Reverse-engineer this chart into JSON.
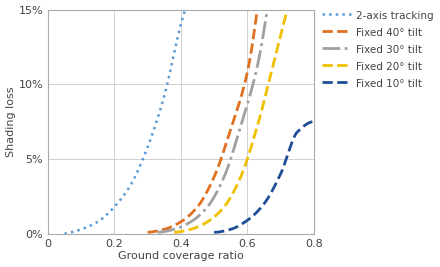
{
  "xlabel": "Ground coverage ratio",
  "ylabel": "Shading loss",
  "xlim": [
    0,
    0.8
  ],
  "ylim": [
    0,
    0.15
  ],
  "xticks": [
    0,
    0.2,
    0.4,
    0.6,
    0.8
  ],
  "yticks": [
    0.0,
    0.05,
    0.1,
    0.15
  ],
  "ytick_labels": [
    "0%",
    "5%",
    "10%",
    "15%"
  ],
  "xtick_labels": [
    "0",
    "0.2",
    "0.4",
    "0.6",
    "0.8"
  ],
  "background_color": "#ffffff",
  "grid_color": "#d0d0d0",
  "curves": [
    {
      "label": "2-axis tracking",
      "color": "#5b9bd5",
      "linestyle": "dotted",
      "linewidth": 1.8,
      "x_points": [
        0.05,
        0.1,
        0.15,
        0.2,
        0.25,
        0.3,
        0.35,
        0.4,
        0.42
      ],
      "y_points": [
        0.0,
        0.003,
        0.008,
        0.018,
        0.033,
        0.058,
        0.092,
        0.14,
        0.155
      ]
    },
    {
      "label": "Fixed 40° tilt",
      "color": "#e07020",
      "linestyle": "dashed",
      "linewidth": 2.0,
      "x_points": [
        0.3,
        0.35,
        0.4,
        0.45,
        0.5,
        0.55,
        0.6,
        0.63
      ],
      "y_points": [
        0.001,
        0.003,
        0.008,
        0.018,
        0.038,
        0.07,
        0.108,
        0.15
      ]
    },
    {
      "label": "Fixed 30° tilt",
      "color": "#a0a0a0",
      "linestyle": "dashdot",
      "linewidth": 2.0,
      "x_points": [
        0.33,
        0.38,
        0.43,
        0.48,
        0.53,
        0.58,
        0.63,
        0.66
      ],
      "y_points": [
        0.001,
        0.003,
        0.008,
        0.018,
        0.038,
        0.072,
        0.112,
        0.15
      ]
    },
    {
      "label": "Fixed 20° tilt",
      "color": "#f0c000",
      "linestyle": "dashed",
      "linewidth": 2.0,
      "x_points": [
        0.38,
        0.43,
        0.48,
        0.53,
        0.58,
        0.63,
        0.68,
        0.72
      ],
      "y_points": [
        0.001,
        0.003,
        0.008,
        0.018,
        0.038,
        0.072,
        0.115,
        0.15
      ]
    },
    {
      "label": "Fixed 10° tilt",
      "color": "#1f4e96",
      "linestyle": "dashed",
      "linewidth": 2.0,
      "x_points": [
        0.5,
        0.55,
        0.6,
        0.65,
        0.7,
        0.75,
        0.8
      ],
      "y_points": [
        0.001,
        0.003,
        0.009,
        0.02,
        0.04,
        0.068,
        0.075
      ]
    }
  ]
}
